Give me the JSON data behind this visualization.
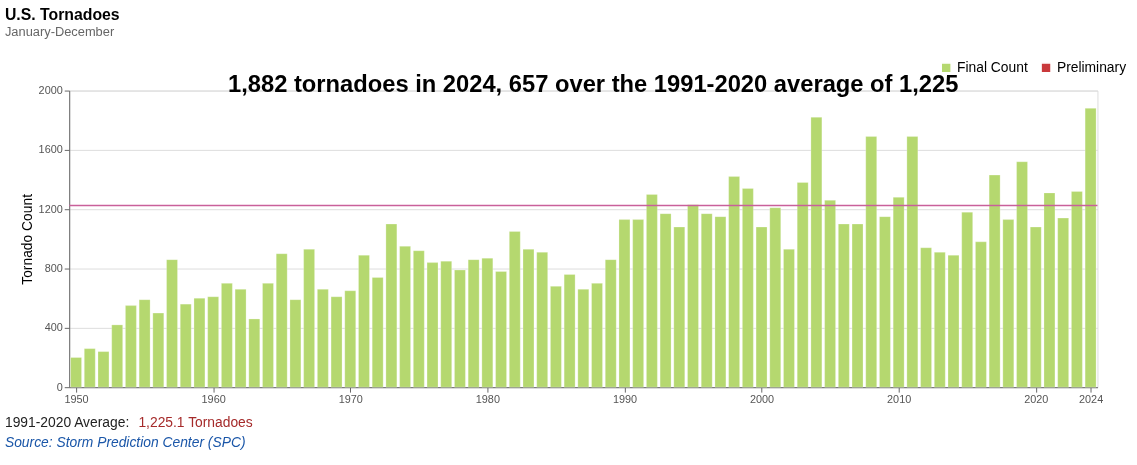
{
  "chart_data": {
    "type": "bar",
    "title": "U.S. Tornadoes",
    "subtitle": "January-December",
    "ylabel": "Tornado Count",
    "x": [
      1950,
      1951,
      1952,
      1953,
      1954,
      1955,
      1956,
      1957,
      1958,
      1959,
      1960,
      1961,
      1962,
      1963,
      1964,
      1965,
      1966,
      1967,
      1968,
      1969,
      1970,
      1971,
      1972,
      1973,
      1974,
      1975,
      1976,
      1977,
      1978,
      1979,
      1980,
      1981,
      1982,
      1983,
      1984,
      1985,
      1986,
      1987,
      1988,
      1989,
      1990,
      1991,
      1992,
      1993,
      1994,
      1995,
      1996,
      1997,
      1998,
      1999,
      2000,
      2001,
      2002,
      2003,
      2004,
      2005,
      2006,
      2007,
      2008,
      2009,
      2010,
      2011,
      2012,
      2013,
      2014,
      2015,
      2016,
      2017,
      2018,
      2019,
      2020,
      2021,
      2022,
      2023,
      2024
    ],
    "series": [
      {
        "name": "Final Count",
        "color": "#b5d86f",
        "values": [
          200,
          260,
          240,
          420,
          550,
          590,
          500,
          860,
          560,
          600,
          610,
          700,
          660,
          460,
          700,
          900,
          590,
          930,
          660,
          610,
          650,
          890,
          740,
          1100,
          950,
          920,
          840,
          850,
          790,
          860,
          870,
          780,
          1050,
          930,
          910,
          680,
          760,
          660,
          700,
          860,
          1130,
          1130,
          1300,
          1170,
          1080,
          1230,
          1170,
          1150,
          1420,
          1340,
          1080,
          1210,
          930,
          1380,
          1820,
          1260,
          1100,
          1100,
          1690,
          1150,
          1280,
          1690,
          940,
          910,
          890,
          1180,
          980,
          1430,
          1130,
          1520,
          1080,
          1310,
          1140,
          1320,
          1880
        ]
      },
      {
        "name": "Preliminary",
        "color": "#c9393b",
        "values": [
          null,
          null,
          null,
          null,
          null,
          null,
          null,
          null,
          null,
          null,
          null,
          null,
          null,
          null,
          null,
          null,
          null,
          null,
          null,
          null,
          null,
          null,
          null,
          null,
          null,
          null,
          null,
          null,
          null,
          null,
          null,
          null,
          null,
          null,
          null,
          null,
          null,
          null,
          null,
          null,
          null,
          null,
          null,
          null,
          null,
          null,
          null,
          null,
          null,
          null,
          null,
          null,
          null,
          null,
          null,
          null,
          null,
          null,
          null,
          null,
          null,
          null,
          null,
          null,
          null,
          null,
          null,
          null,
          null,
          null,
          null,
          null,
          null,
          null,
          null
        ]
      }
    ],
    "xlim": [
      1949.5,
      2024.5
    ],
    "xticks": [
      1950,
      1960,
      1970,
      1980,
      1990,
      2000,
      2010,
      2020,
      2024
    ],
    "ylim": [
      0,
      2000
    ],
    "yticks": [
      0,
      400,
      800,
      {
        "value": 1200,
        "label": "1200"
      },
      {
        "value": 1600,
        "label": "1600"
      },
      {
        "value": 2000,
        "label": "2000"
      }
    ],
    "ref_lines": [
      {
        "axis": "y",
        "value": 1225.1,
        "color": "#c9609a"
      }
    ],
    "grid": "y",
    "legend": "top right",
    "annotations": [
      "1,882 tornadoes in 2024, 657 over the 1991-2020 average of 1,225",
      "1991-2020 Average:",
      "1,225.1 Tornadoes",
      "Source: Storm Prediction Center (SPC)"
    ]
  }
}
